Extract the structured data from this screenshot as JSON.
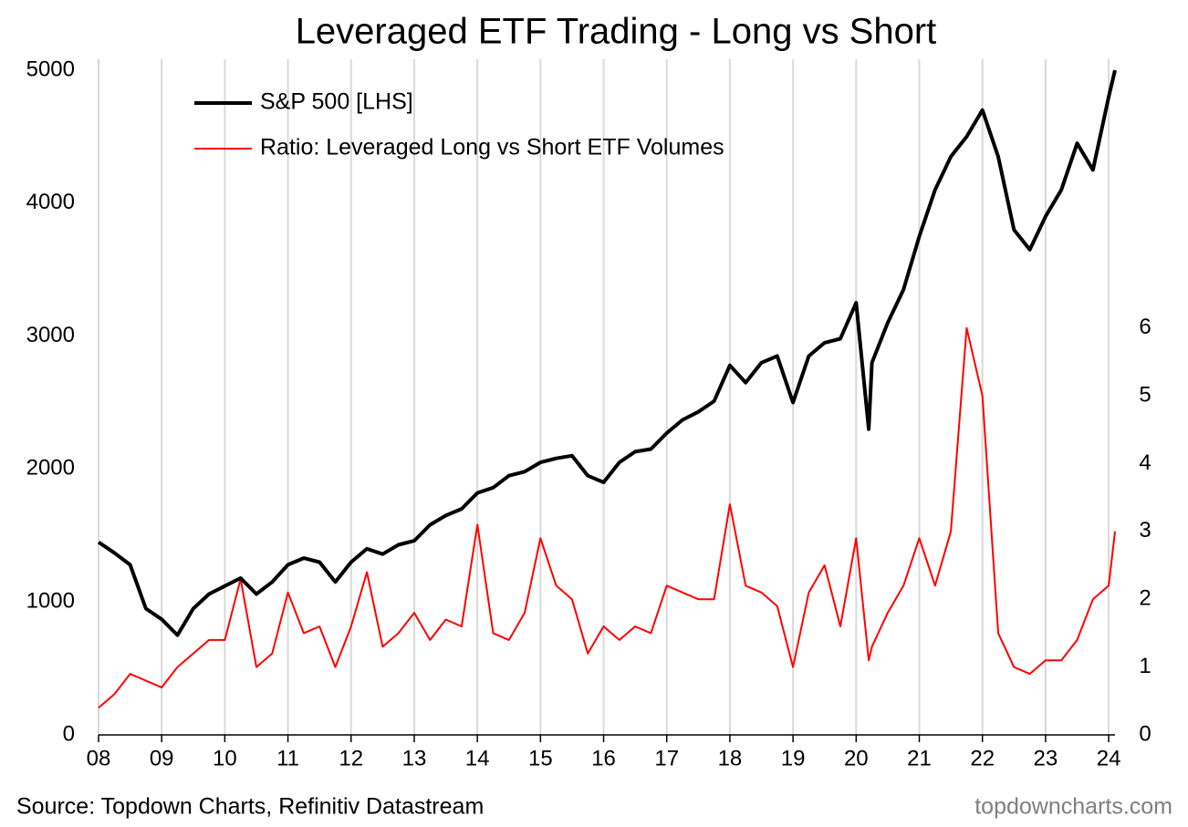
{
  "chart_data": {
    "type": "line",
    "title": "Leveraged ETF Trading - Long vs Short",
    "source": "Source: Topdown Charts, Refinitiv Datastream",
    "watermark": "topdowncharts.com",
    "x": [
      2008,
      2008.25,
      2008.5,
      2008.75,
      2009,
      2009.25,
      2009.5,
      2009.75,
      2010,
      2010.25,
      2010.5,
      2010.75,
      2011,
      2011.25,
      2011.5,
      2011.75,
      2012,
      2012.25,
      2012.5,
      2012.75,
      2013,
      2013.25,
      2013.5,
      2013.75,
      2014,
      2014.25,
      2014.5,
      2014.75,
      2015,
      2015.25,
      2015.5,
      2015.75,
      2016,
      2016.25,
      2016.5,
      2016.75,
      2017,
      2017.25,
      2017.5,
      2017.75,
      2018,
      2018.25,
      2018.5,
      2018.75,
      2019,
      2019.25,
      2019.5,
      2019.75,
      2020,
      2020.2,
      2020.25,
      2020.5,
      2020.75,
      2021,
      2021.25,
      2021.5,
      2021.75,
      2022,
      2022.25,
      2022.5,
      2022.75,
      2023,
      2023.25,
      2023.5,
      2023.75,
      2024,
      2024.1
    ],
    "series": [
      {
        "name": "S&P 500 [LHS]",
        "color": "#000000",
        "width": 4,
        "values": [
          1450,
          1370,
          1280,
          950,
          870,
          750,
          950,
          1060,
          1120,
          1180,
          1060,
          1150,
          1280,
          1330,
          1300,
          1150,
          1300,
          1400,
          1360,
          1430,
          1460,
          1580,
          1650,
          1700,
          1820,
          1860,
          1950,
          1980,
          2050,
          2080,
          2100,
          1950,
          1900,
          2050,
          2130,
          2150,
          2270,
          2370,
          2430,
          2510,
          2780,
          2650,
          2800,
          2850,
          2500,
          2850,
          2950,
          2980,
          3250,
          2300,
          2800,
          3100,
          3350,
          3750,
          4100,
          4350,
          4500,
          4700,
          4350,
          3800,
          3650,
          3900,
          4100,
          4450,
          4250,
          4800,
          5000
        ]
      },
      {
        "name": "Ratio: Leveraged Long vs Short ETF Volumes",
        "color": "#ff0000",
        "width": 2,
        "axis": "y2",
        "values": [
          0.4,
          0.6,
          0.9,
          0.8,
          0.7,
          1.0,
          1.2,
          1.4,
          1.4,
          2.3,
          1.0,
          1.2,
          2.1,
          1.5,
          1.6,
          1.0,
          1.6,
          2.4,
          1.3,
          1.5,
          1.8,
          1.4,
          1.7,
          1.6,
          3.1,
          1.5,
          1.4,
          1.8,
          2.9,
          2.2,
          2.0,
          1.2,
          1.6,
          1.4,
          1.6,
          1.5,
          2.2,
          2.1,
          2.0,
          2.0,
          3.4,
          2.2,
          2.1,
          1.9,
          1.0,
          2.1,
          2.5,
          1.6,
          2.9,
          1.1,
          1.3,
          1.8,
          2.2,
          2.9,
          2.2,
          3.0,
          6.0,
          5.0,
          1.5,
          1.0,
          0.9,
          1.1,
          1.1,
          1.4,
          2.0,
          2.2,
          3.0
        ]
      }
    ],
    "xlim": [
      2008,
      2024.1
    ],
    "xticks": [
      {
        "value": 2008,
        "label": "08"
      },
      {
        "value": 2009,
        "label": "09"
      },
      {
        "value": 2010,
        "label": "10"
      },
      {
        "value": 2011,
        "label": "11"
      },
      {
        "value": 2012,
        "label": "12"
      },
      {
        "value": 2013,
        "label": "13"
      },
      {
        "value": 2014,
        "label": "14"
      },
      {
        "value": 2015,
        "label": "15"
      },
      {
        "value": 2016,
        "label": "16"
      },
      {
        "value": 2017,
        "label": "17"
      },
      {
        "value": 2018,
        "label": "18"
      },
      {
        "value": 2019,
        "label": "19"
      },
      {
        "value": 2020,
        "label": "20"
      },
      {
        "value": 2021,
        "label": "21"
      },
      {
        "value": 2022,
        "label": "22"
      },
      {
        "value": 2023,
        "label": "23"
      },
      {
        "value": 2024,
        "label": "24"
      }
    ],
    "ylim": [
      0,
      5000
    ],
    "yticks": [
      0,
      1000,
      2000,
      3000,
      4000,
      5000
    ],
    "y2lim": [
      0,
      9.8
    ],
    "y2ticks": [
      0,
      1,
      2,
      3,
      4,
      5,
      6
    ],
    "grid": true,
    "legend": "top-left"
  }
}
